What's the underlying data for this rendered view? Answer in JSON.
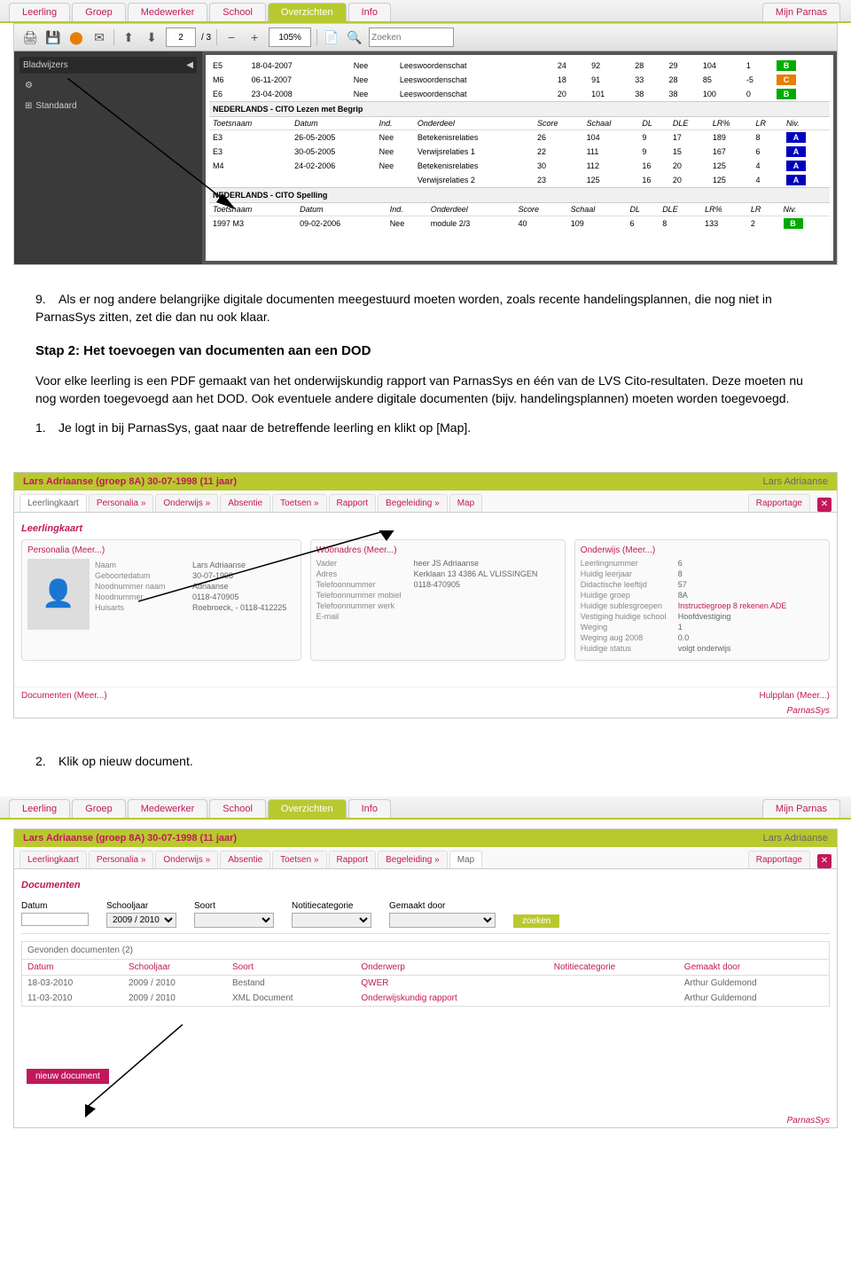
{
  "nav": {
    "tabs": [
      "Leerling",
      "Groep",
      "Medewerker",
      "School",
      "Overzichten",
      "Info"
    ],
    "right": "Mijn Parnas",
    "active": 4
  },
  "pdf": {
    "page_current": "2",
    "page_total": "/ 3",
    "zoom": "105%",
    "search_placeholder": "Zoeken",
    "sidebar_title": "Bladwijzers",
    "sidebar_item": "Standaard",
    "sections": [
      {
        "rows": [
          [
            "E5",
            "18-04-2007",
            "Nee",
            "Leeswoordenschat",
            "24",
            "92",
            "28",
            "29",
            "104",
            "1",
            "B",
            "b"
          ],
          [
            "M6",
            "06-11-2007",
            "Nee",
            "Leeswoordenschat",
            "18",
            "91",
            "33",
            "28",
            "85",
            "-5",
            "C",
            "c"
          ],
          [
            "E6",
            "23-04-2008",
            "Nee",
            "Leeswoordenschat",
            "20",
            "101",
            "38",
            "38",
            "100",
            "0",
            "B",
            "b"
          ]
        ]
      },
      {
        "title": "NEDERLANDS - CITO Lezen met Begrip",
        "headers": [
          "Toetsnaam",
          "Datum",
          "Ind.",
          "Onderdeel",
          "Score",
          "Schaal",
          "DL",
          "DLE",
          "LR%",
          "LR",
          "Niv."
        ],
        "rows": [
          [
            "E3",
            "26-05-2005",
            "Nee",
            "Betekenisrelaties",
            "26",
            "104",
            "9",
            "17",
            "189",
            "8",
            "A",
            "a"
          ],
          [
            "E3",
            "30-05-2005",
            "Nee",
            "Verwijsrelaties 1",
            "22",
            "111",
            "9",
            "15",
            "167",
            "6",
            "A",
            "a"
          ],
          [
            "M4",
            "24-02-2006",
            "Nee",
            "Betekenisrelaties",
            "30",
            "112",
            "16",
            "20",
            "125",
            "4",
            "A",
            "a"
          ],
          [
            "",
            "",
            "",
            "Verwijsrelaties 2",
            "23",
            "125",
            "16",
            "20",
            "125",
            "4",
            "A",
            "a"
          ]
        ]
      },
      {
        "title": "NEDERLANDS - CITO Spelling",
        "headers": [
          "Toetsnaam",
          "Datum",
          "Ind.",
          "Onderdeel",
          "Score",
          "Schaal",
          "DL",
          "DLE",
          "LR%",
          "LR",
          "Niv."
        ],
        "rows": [
          [
            "1997 M3",
            "09-02-2006",
            "Nee",
            "module 2/3",
            "40",
            "109",
            "6",
            "8",
            "133",
            "2",
            "B",
            "b"
          ]
        ]
      }
    ]
  },
  "doc": {
    "item9_num": "9.",
    "item9": "Als er nog andere belangrijke digitale documenten meegestuurd moeten worden, zoals recente handelingsplannen, die nog niet in ParnasSys zitten, zet die dan nu ook klaar.",
    "step2_title": "Stap 2: Het toevoegen van documenten aan een DOD",
    "step2_p": "Voor elke leerling is een PDF gemaakt van het onderwijskundig rapport van ParnasSys en één van de LVS Cito-resultaten. Deze moeten nu nog worden toegevoegd aan het DOD. Ook eventuele andere digitale documenten (bijv. handelingsplannen) moeten worden toegevoegd.",
    "item1_num": "1.",
    "item1": "Je logt in bij ParnasSys, gaat naar de betreffende leerling en klikt op [Map].",
    "item2_num": "2.",
    "item2": "Klik op nieuw document."
  },
  "ps1": {
    "title": "Lars Adriaanse (groep 8A) 30-07-1998 (11 jaar)",
    "right": "Lars Adriaanse",
    "tabs": [
      "Leerlingkaart",
      "Personalia »",
      "Onderwijs »",
      "Absentie",
      "Toetsen »",
      "Rapport",
      "Begeleiding »",
      "Map"
    ],
    "active": 0,
    "rapportage": "Rapportage",
    "section": "Leerlingkaart",
    "col1_title": "Personalia (Meer...)",
    "col1": [
      [
        "Naam",
        "Lars Adriaanse"
      ],
      [
        "Geboortedatum",
        "30-07-1998"
      ],
      [
        "Noodnummer naam",
        "Adriaanse"
      ],
      [
        "Noodnummer",
        "0118-470905"
      ],
      [
        "Huisarts",
        "Roebroeck, - 0118-412225"
      ]
    ],
    "col2_title": "Woonadres (Meer...)",
    "col2": [
      [
        "Vader",
        "heer JS Adriaanse"
      ],
      [
        "Adres",
        "Kerklaan 13\n4386 AL VLISSINGEN"
      ],
      [
        "Telefoonnummer",
        "0118-470905"
      ],
      [
        "Telefoonnummer mobiel",
        ""
      ],
      [
        "Telefoonnummer werk",
        ""
      ],
      [
        "E-mail",
        ""
      ]
    ],
    "col3_title": "Onderwijs (Meer...)",
    "col3": [
      [
        "Leerlingnummer",
        "6"
      ],
      [
        "Huidig leerjaar",
        "8"
      ],
      [
        "Didactische leeftijd",
        "57"
      ],
      [
        "Huidige groep",
        "8A"
      ],
      [
        "Huidige sublesgroepen",
        "Instructiegroep 8 rekenen ADE"
      ],
      [
        "Vestiging huidige school",
        "Hoofdvestiging"
      ],
      [
        "Weging",
        "1"
      ],
      [
        "Weging aug 2008",
        "0.0"
      ],
      [
        "Huidige status",
        "volgt onderwijs"
      ]
    ],
    "col3_accent": 4,
    "footer_l": "Documenten (Meer...)",
    "footer_r": "Hulpplan (Meer...)",
    "logo": "ParnasSys"
  },
  "ps2": {
    "title": "Lars Adriaanse (groep 8A) 30-07-1998 (11 jaar)",
    "right": "Lars Adriaanse",
    "tabs": [
      "Leerlingkaart",
      "Personalia »",
      "Onderwijs »",
      "Absentie",
      "Toetsen »",
      "Rapport",
      "Begeleiding »",
      "Map"
    ],
    "active": 7,
    "rapportage": "Rapportage",
    "section": "Documenten",
    "filters": [
      "Datum",
      "Schooljaar",
      "Soort",
      "Notitiecategorie",
      "Gemaakt door"
    ],
    "schooljaar_val": "2009 / 2010",
    "zoeken": "zoeken",
    "found": "Gevonden documenten (2)",
    "list_headers": [
      "Datum",
      "Schooljaar",
      "Soort",
      "Onderwerp",
      "Notitiecategorie",
      "Gemaakt door"
    ],
    "rows": [
      [
        "18-03-2010",
        "2009 / 2010",
        "Bestand",
        "QWER",
        "",
        "Arthur Guldemond"
      ],
      [
        "11-03-2010",
        "2009 / 2010",
        "XML Document",
        "Onderwijskundig rapport",
        "",
        "Arthur Guldemond"
      ]
    ],
    "new_doc": "nieuw document",
    "logo": "ParnasSys"
  }
}
